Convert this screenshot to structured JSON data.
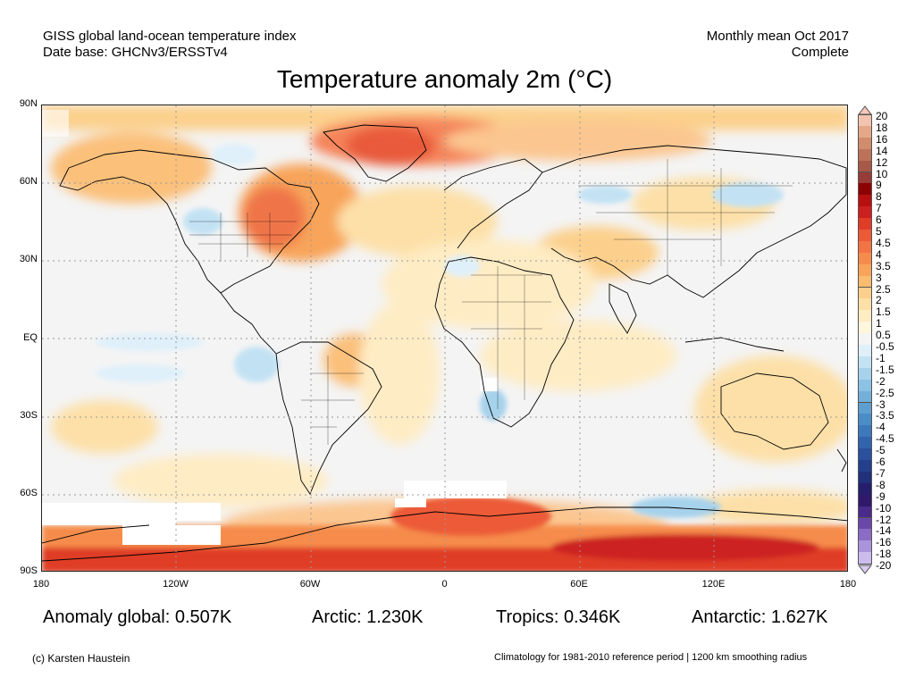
{
  "header": {
    "line1": "GISS global land-ocean temperature index",
    "line2": "Date base: GHCNv3/ERSSTv4",
    "right1": "Monthly mean Oct 2017",
    "right2": "Complete"
  },
  "title": "Temperature anomaly 2m (°C)",
  "axes": {
    "lat_labels": [
      "90N",
      "60N",
      "30N",
      "EQ",
      "30S",
      "60S",
      "90S"
    ],
    "lon_labels": [
      "180",
      "120W",
      "60W",
      "0",
      "60E",
      "120E",
      "180"
    ]
  },
  "colorbar": {
    "ticks": [
      "20",
      "18",
      "16",
      "14",
      "12",
      "10",
      "9",
      "8",
      "7",
      "6",
      "5",
      "4.5",
      "4",
      "3.5",
      "3",
      "2.5",
      "2",
      "1.5",
      "1",
      "0.5",
      "-0.5",
      "-1",
      "-1.5",
      "-2",
      "-2.5",
      "-3",
      "-3.5",
      "-4",
      "-4.5",
      "-5",
      "-6",
      "-7",
      "-8",
      "-9",
      "-10",
      "-12",
      "-14",
      "-16",
      "-18",
      "-20"
    ],
    "colors": [
      "#f2c4b0",
      "#e4a888",
      "#d08c6c",
      "#bc7258",
      "#a85848",
      "#983c38",
      "#8c0000",
      "#b81010",
      "#cc2020",
      "#e03c28",
      "#ec5a38",
      "#f27444",
      "#f68c4c",
      "#f8a45a",
      "#fabc6e",
      "#fcd08c",
      "#fde0a8",
      "#feecc4",
      "#fff6de",
      "#f4f4f4",
      "#dff0fa",
      "#c2e2f4",
      "#a6d2ec",
      "#8cc2e4",
      "#74b0da",
      "#5e9ed0",
      "#4a8cc6",
      "#3c78ba",
      "#3264ae",
      "#2a509e",
      "#24408c",
      "#20307a",
      "#241e6c",
      "#30186a",
      "#4a2a8a",
      "#6a48aa",
      "#8a6cc4",
      "#ac94dc",
      "#ccbcee"
    ],
    "top_color": "#f5c8b8",
    "bottom_color": "#d8ccf2"
  },
  "stats": {
    "global": "Anomaly global: 0.507K",
    "arctic": "Arctic: 1.230K",
    "tropics": "Tropics: 0.346K",
    "antarctic": "Antarctic: 1.627K"
  },
  "footer": {
    "copyright": "(c) Karsten Haustein",
    "note": "Climatology for 1981-2010 reference period | 1200 km smoothing radius"
  }
}
